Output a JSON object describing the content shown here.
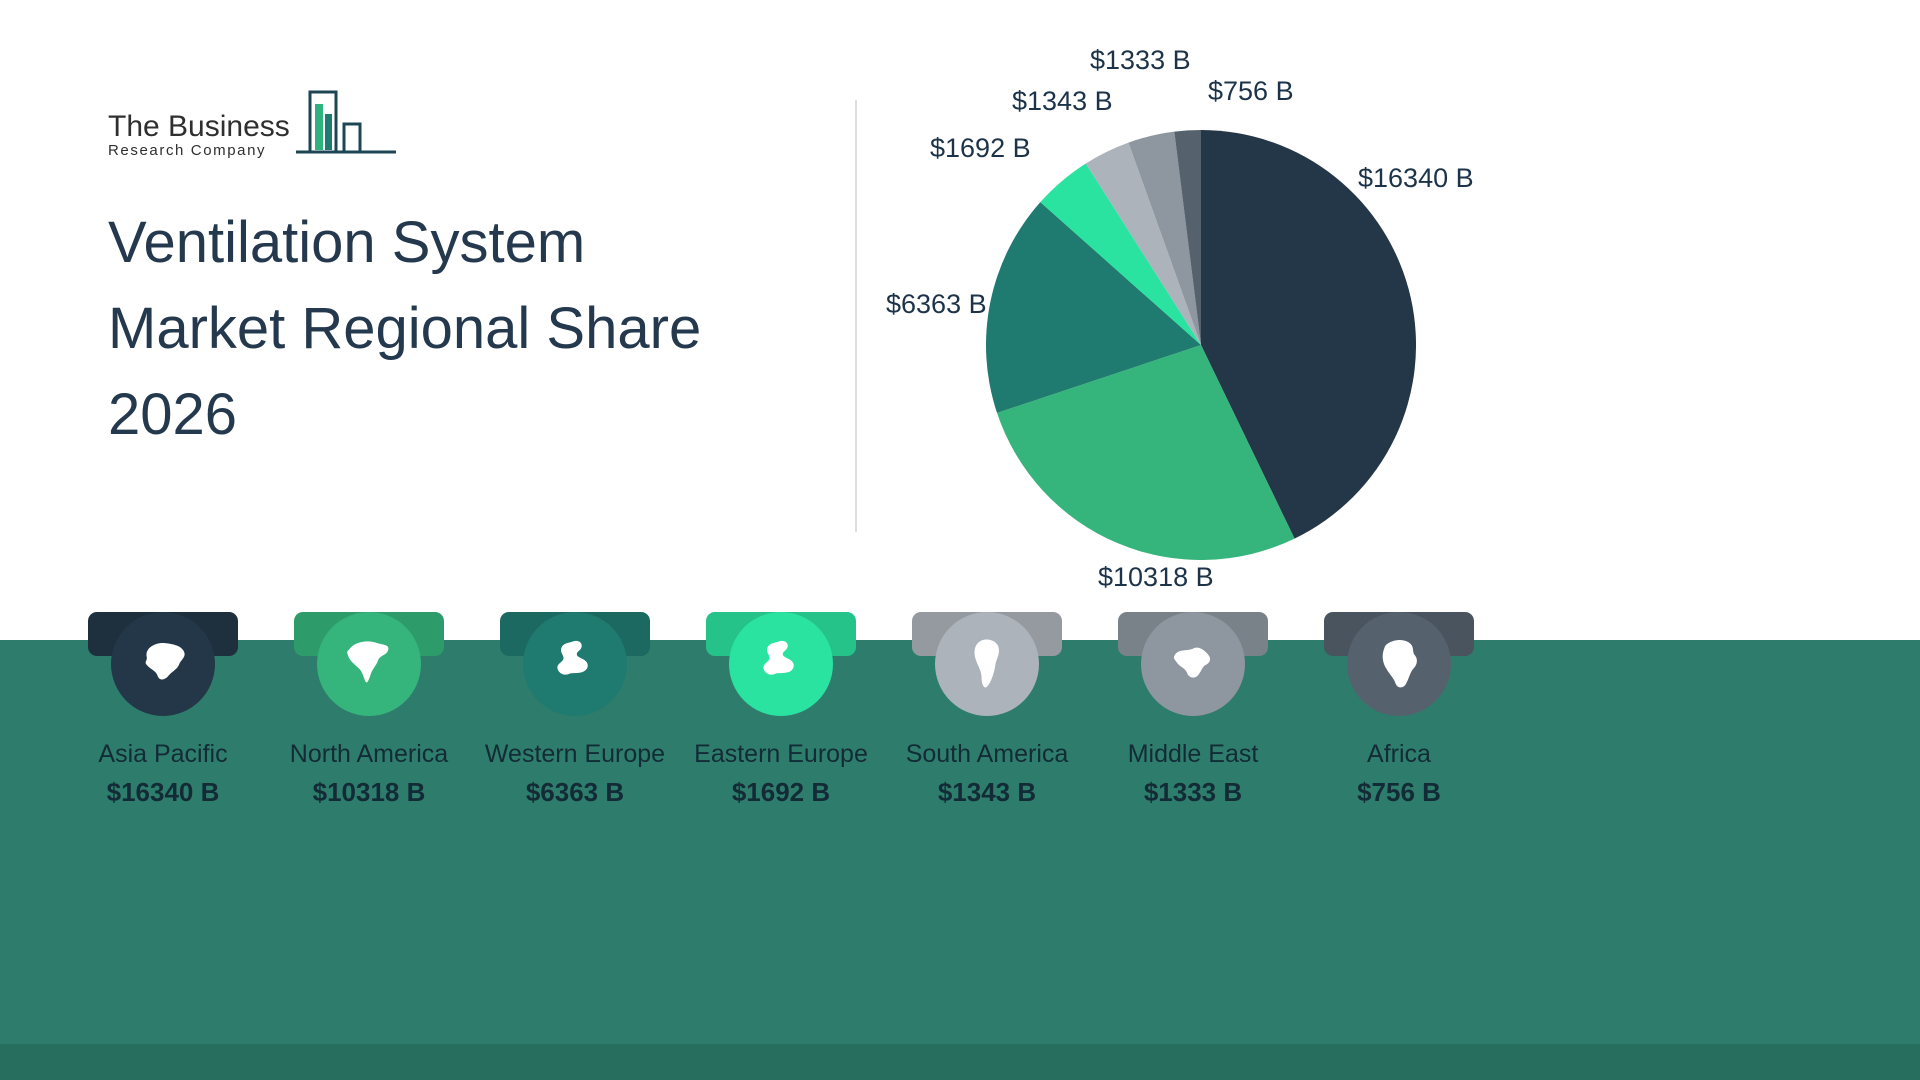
{
  "logo": {
    "line1": "The Business",
    "line2": "Research Company"
  },
  "title": {
    "line1": "Ventilation System",
    "line2": "Market Regional Share",
    "line3": "2026"
  },
  "chart_data": {
    "type": "pie",
    "title": "Ventilation System Market Regional Share 2026",
    "unit": "$ Billion",
    "categories": [
      "Asia Pacific",
      "North America",
      "Western Europe",
      "Eastern Europe",
      "South America",
      "Middle East",
      "Africa"
    ],
    "values": [
      16340,
      10318,
      6363,
      1692,
      1343,
      1333,
      756
    ],
    "labels": [
      "$16340 B",
      "$10318 B",
      "$6363 B",
      "$1692 B",
      "$1343 B",
      "$1333 B",
      "$756 B"
    ],
    "colors": [
      "#233748",
      "#35b57c",
      "#1f7a70",
      "#2be3a0",
      "#adb3ba",
      "#8e979f",
      "#55626e"
    ],
    "start_angle_deg": -90,
    "direction": "clockwise",
    "legend_position": "bottom"
  },
  "legend": {
    "items": [
      {
        "name": "Asia Pacific",
        "value": "$16340 B",
        "color": "#233748",
        "icon": "asia-map-icon"
      },
      {
        "name": "North America",
        "value": "$10318 B",
        "color": "#35b57c",
        "icon": "north-america-map-icon"
      },
      {
        "name": "Western Europe",
        "value": "$6363 B",
        "color": "#1f7a70",
        "icon": "europe-map-icon"
      },
      {
        "name": "Eastern Europe",
        "value": "$1692 B",
        "color": "#2be3a0",
        "icon": "europe-map-icon"
      },
      {
        "name": "South America",
        "value": "$1343 B",
        "color": "#adb3ba",
        "icon": "south-america-map-icon"
      },
      {
        "name": "Middle East",
        "value": "$1333 B",
        "color": "#8e979f",
        "icon": "middle-east-map-icon"
      },
      {
        "name": "Africa",
        "value": "$756 B",
        "color": "#55626e",
        "icon": "africa-map-icon"
      }
    ]
  }
}
